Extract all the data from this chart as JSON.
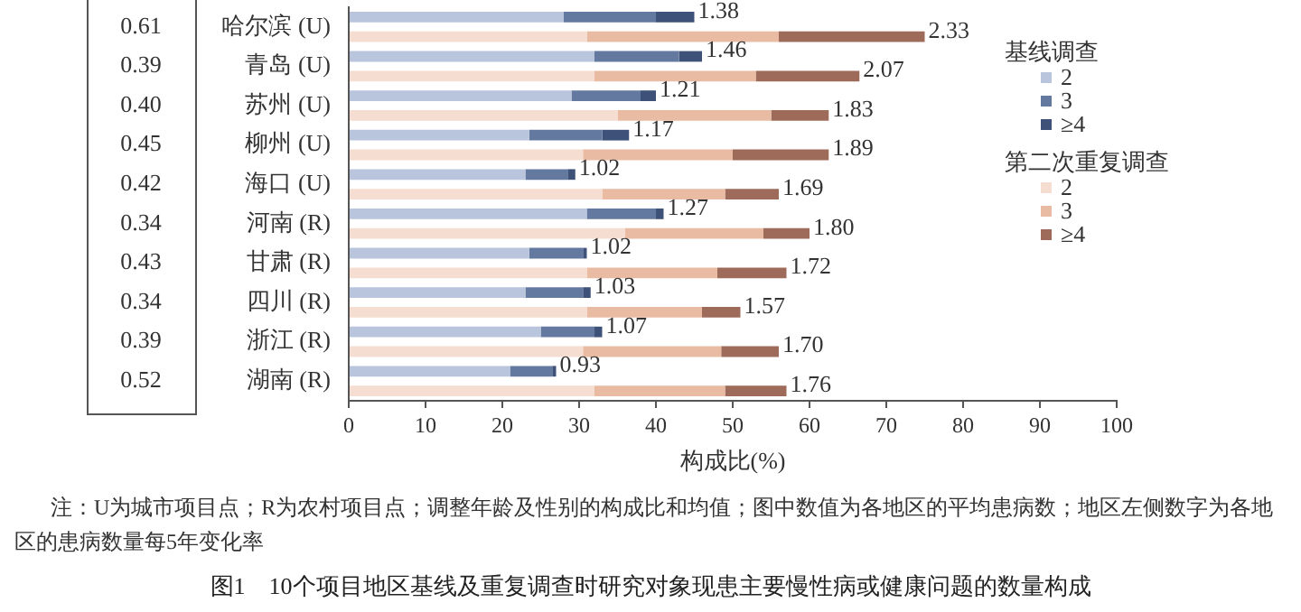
{
  "chart_data": {
    "type": "bar",
    "title": "图1　10个项目地区基线及重复调查时研究对象现患主要慢性病或健康问题的数量构成",
    "xlabel": "构成比(%)",
    "categories": [
      "哈尔滨 (U)",
      null,
      "青岛 (U)",
      null,
      "苏州 (U)",
      null,
      "柳州 (U)",
      null,
      "海口 (U)",
      null,
      "河南 (R)",
      null,
      "甘肃 (R)",
      null,
      "四川 (R)",
      null,
      "浙江 (R)",
      null,
      "湖南 (R)",
      null
    ],
    "stacked": true,
    "orientation": "horizontal",
    "xlim": [
      0,
      100
    ],
    "xticks": [
      0,
      10,
      20,
      30,
      40,
      50,
      60,
      70,
      80,
      90,
      100
    ],
    "legend": "top right",
    "series": [
      {
        "name": "2",
        "color": "#b9c4dd",
        "values": [
          28,
          null,
          32,
          null,
          29,
          null,
          23.5,
          null,
          23,
          null,
          31,
          null,
          23.5,
          null,
          23,
          null,
          25,
          null,
          21,
          null
        ]
      },
      {
        "name": "3",
        "color": "#6479a0",
        "values": [
          12,
          null,
          11,
          null,
          9,
          null,
          9.5,
          null,
          5.5,
          null,
          9,
          null,
          7,
          null,
          7.5,
          null,
          7,
          null,
          5.5,
          null
        ]
      },
      {
        "name": "≥4",
        "color": "#3e5178",
        "values": [
          5,
          null,
          3,
          null,
          2,
          null,
          3.5,
          null,
          1,
          null,
          1,
          null,
          0.5,
          null,
          1,
          null,
          1,
          null,
          0.5,
          null
        ]
      },
      {
        "name": "2",
        "color": "#f5ddd1",
        "values": [
          null,
          31,
          null,
          32,
          null,
          35,
          null,
          30.5,
          null,
          33,
          null,
          36,
          null,
          31,
          null,
          31,
          null,
          30.5,
          null,
          32
        ]
      },
      {
        "name": "3",
        "color": "#e9bba3",
        "values": [
          null,
          25,
          null,
          21,
          null,
          20,
          null,
          19.5,
          null,
          16,
          null,
          18,
          null,
          17,
          null,
          15,
          null,
          18,
          null,
          17
        ]
      },
      {
        "name": "≥4",
        "color": "#9e6b5a",
        "values": [
          null,
          19,
          null,
          13.5,
          null,
          7.5,
          null,
          12.5,
          null,
          7,
          null,
          6,
          null,
          9,
          null,
          5,
          null,
          7.5,
          null,
          8
        ]
      }
    ],
    "annotations": [
      {
        "text": "1.38",
        "x": 45,
        "y": "哈尔滨 (U)"
      },
      {
        "text": "2.33",
        "x": 75
      },
      {
        "text": "1.46",
        "x": 46,
        "y": "青岛 (U)"
      },
      {
        "text": "2.07",
        "x": 66.5
      },
      {
        "text": "1.21",
        "x": 40,
        "y": "苏州 (U)"
      },
      {
        "text": "1.83",
        "x": 62.5
      },
      {
        "text": "1.17",
        "x": 36.5,
        "y": "柳州 (U)"
      },
      {
        "text": "1.89",
        "x": 62.5
      },
      {
        "text": "1.02",
        "x": 29.5,
        "y": "海口 (U)"
      },
      {
        "text": "1.69",
        "x": 56
      },
      {
        "text": "1.27",
        "x": 41,
        "y": "河南 (R)"
      },
      {
        "text": "1.80",
        "x": 60
      },
      {
        "text": "1.02",
        "x": 31,
        "y": "甘肃 (R)"
      },
      {
        "text": "1.72",
        "x": 57
      },
      {
        "text": "1.03",
        "x": 31.5,
        "y": "四川 (R)"
      },
      {
        "text": "1.57",
        "x": 51
      },
      {
        "text": "1.07",
        "x": 33,
        "y": "浙江 (R)"
      },
      {
        "text": "1.70",
        "x": 56
      },
      {
        "text": "0.93",
        "x": 27,
        "y": "湖南 (R)"
      },
      {
        "text": "1.76",
        "x": 57
      },
      "0.61",
      "0.39",
      "0.40",
      "0.45",
      "0.42",
      "0.34",
      "0.43",
      "0.34",
      "0.39",
      "0.52",
      "基线调查",
      "第二次重复调查",
      "注：U为城市项目点；R为农村项目点；调整年龄及性别的构成比和均值；图中数值为各地区的平均患病数；地区左侧数字为各地区的患病数量每5年变化率"
    ]
  }
}
